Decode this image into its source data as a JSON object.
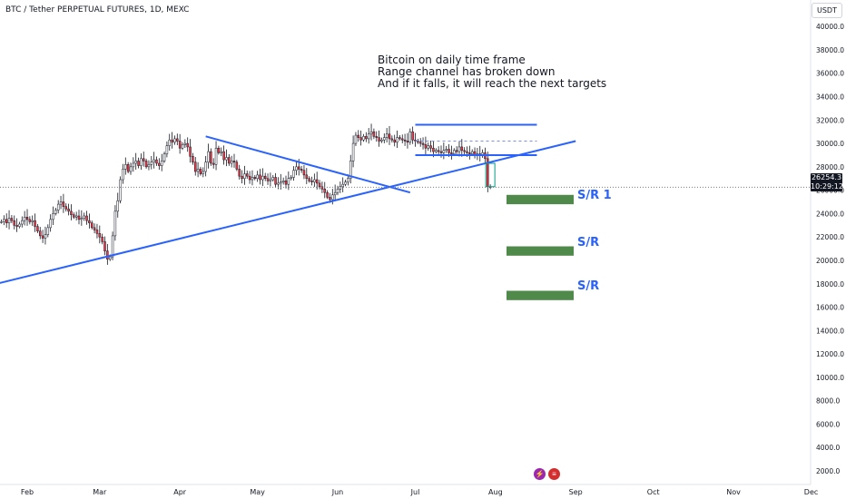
{
  "header": {
    "title": "BTC / Tether PERPETUAL FUTURES, 1D, MEXC",
    "currency_button": "USDT"
  },
  "annotation": {
    "lines": [
      "Bitcoin on daily time frame",
      "Range channel has broken down",
      "And if it falls, it will reach the next targets"
    ]
  },
  "price_label": {
    "price": "26254.3",
    "countdown": "10:29:12"
  },
  "sr_labels": [
    "S/R  1",
    "S/R",
    "S/R"
  ],
  "colors": {
    "up": "#089981",
    "down": "#f23645",
    "line": "#2962ff",
    "zone": "#4f8a4b",
    "candle_body": "#131722"
  },
  "chart_data": {
    "type": "candlestick",
    "title": "BTC / Tether PERPETUAL FUTURES, 1D, MEXC",
    "ylim": [
      1000,
      41000
    ],
    "y_ticks": [
      2000,
      4000,
      6000,
      8000,
      10000,
      12000,
      14000,
      16000,
      18000,
      20000,
      22000,
      24000,
      26000,
      28000,
      30000,
      32000,
      34000,
      36000,
      38000,
      40000
    ],
    "y_tick_labels": [
      "2000.0",
      "4000.0",
      "6000.0",
      "8000.0",
      "10000.0",
      "12000.0",
      "14000.0",
      "16000.0",
      "18000.0",
      "20000.0",
      "22000.0",
      "24000.0",
      "26000.0",
      "28000.0",
      "30000.0",
      "32000.0",
      "34000.0",
      "36000.0",
      "38000.0",
      "40000.0"
    ],
    "x_labels": [
      "Feb",
      "Mar",
      "Apr",
      "May",
      "Jun",
      "Jul",
      "Aug",
      "Sep",
      "Oct",
      "Nov",
      "Dec"
    ],
    "x_label_days": [
      0,
      28,
      59,
      89,
      120,
      150,
      181,
      212,
      242,
      273,
      303
    ],
    "last_price": 26254.3,
    "ohlc": {
      "start_day": -10,
      "closes": [
        23300,
        23500,
        23200,
        23600,
        23400,
        23000,
        22900,
        23100,
        23400,
        23700,
        23500,
        23300,
        23400,
        22900,
        22500,
        22100,
        21900,
        22200,
        22800,
        23500,
        24000,
        24300,
        24800,
        25000,
        24600,
        24400,
        24200,
        23900,
        23700,
        23800,
        23500,
        23600,
        23800,
        23400,
        23200,
        22800,
        22600,
        22300,
        22000,
        21600,
        20800,
        20100,
        20300,
        22100,
        24200,
        25100,
        26900,
        27800,
        28200,
        27600,
        28000,
        28300,
        28500,
        28100,
        28700,
        28500,
        28000,
        28200,
        28400,
        28600,
        28300,
        28100,
        28500,
        29100,
        29800,
        30300,
        30100,
        30400,
        30200,
        29600,
        29900,
        30000,
        29700,
        28900,
        28400,
        27600,
        27800,
        27400,
        27600,
        28400,
        29300,
        28300,
        28200,
        29600,
        29200,
        29300,
        28600,
        28800,
        28300,
        28500,
        28400,
        27800,
        27200,
        27000,
        27400,
        27200,
        26900,
        27100,
        27000,
        27300,
        26900,
        27200,
        27000,
        26800,
        26900,
        27100,
        26500,
        26600,
        26700,
        26800,
        26500,
        27000,
        27100,
        27700,
        28000,
        27800,
        27700,
        27300,
        27000,
        26800,
        26700,
        26900,
        26600,
        26300,
        26100,
        25800,
        25400,
        25200,
        25600,
        25800,
        26100,
        26300,
        26500,
        26700,
        27000,
        28500,
        30000,
        30700,
        30500,
        30300,
        30600,
        30400,
        30800,
        31000,
        30600,
        30500,
        30200,
        30300,
        30500,
        30800,
        30400,
        30300,
        30100,
        30500,
        30400,
        30300,
        30200,
        30100,
        31000,
        30300,
        30200,
        30100,
        30000,
        29900,
        29600,
        29800,
        29600,
        29300,
        29400,
        29300,
        29200,
        29400,
        29500,
        29200,
        29100,
        29400,
        29300,
        29700,
        29400,
        29300,
        29200,
        29100,
        29300,
        29000,
        29100,
        29000,
        29200,
        28700,
        26300,
        26250
      ],
      "candle_spacing_days": 1
    },
    "levels": [
      {
        "kind": "support_resistance_zone",
        "name": "S/R  1",
        "low": 24800,
        "high": 25600
      },
      {
        "kind": "support_resistance_zone",
        "name": "S/R",
        "low": 20400,
        "high": 21200
      },
      {
        "kind": "support_resistance_zone",
        "name": "S/R",
        "low": 16600,
        "high": 17400
      }
    ],
    "trendlines": [
      {
        "kind": "rising_support",
        "from": {
          "day": -21,
          "price": 17500
        },
        "to": {
          "day": 212,
          "price": 30200
        }
      },
      {
        "kind": "descending_resistance",
        "from": {
          "day": 69,
          "price": 30600
        },
        "to": {
          "day": 148,
          "price": 25800
        }
      },
      {
        "kind": "range_top",
        "from": {
          "day": 150,
          "price": 31600
        },
        "to": {
          "day": 197,
          "price": 31600
        }
      },
      {
        "kind": "range_bottom",
        "from": {
          "day": 150,
          "price": 29000
        },
        "to": {
          "day": 197,
          "price": 29000
        }
      },
      {
        "kind": "range_mid_dashed",
        "from": {
          "day": 150,
          "price": 30200
        },
        "to": {
          "day": 197,
          "price": 30200
        }
      }
    ],
    "grid": false,
    "legend": "none"
  }
}
